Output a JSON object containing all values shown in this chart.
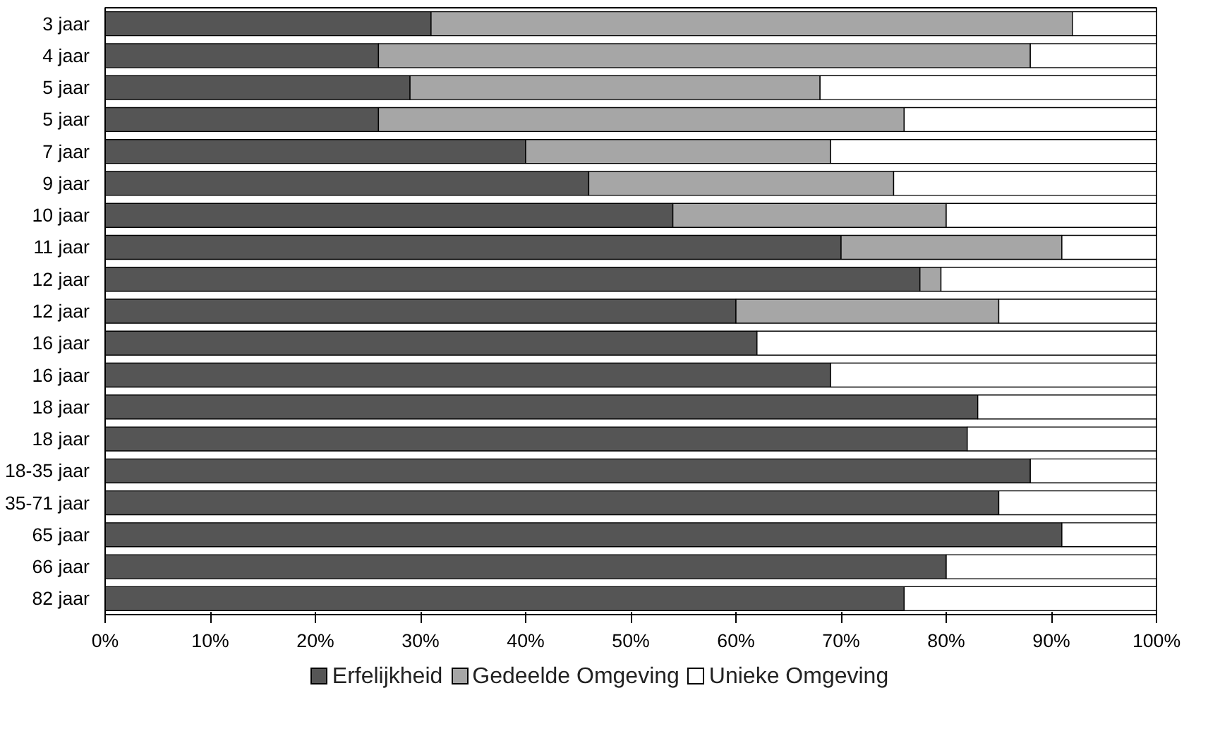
{
  "chart_data": {
    "type": "bar",
    "orientation": "horizontal",
    "stacked": true,
    "categories": [
      "3 jaar",
      "4 jaar",
      "5 jaar",
      "5 jaar",
      "7 jaar",
      "9 jaar",
      "10 jaar",
      "11 jaar",
      "12 jaar",
      "12 jaar",
      "16 jaar",
      "16 jaar",
      "18 jaar",
      "18 jaar",
      "18-35 jaar",
      "35-71 jaar",
      "65 jaar",
      "66 jaar",
      "82 jaar"
    ],
    "series": [
      {
        "name": "Erfelijkheid",
        "color": "#555555",
        "values": [
          31,
          26,
          29,
          26,
          40,
          46,
          54,
          70,
          77.5,
          60,
          62,
          69,
          83,
          82,
          88,
          85,
          91,
          80,
          76
        ]
      },
      {
        "name": "Gedeelde Omgeving",
        "color": "#a6a6a6",
        "values": [
          61,
          62,
          39,
          50,
          29,
          29,
          26,
          21,
          2,
          25,
          0,
          0,
          0,
          0,
          0,
          0,
          0,
          0,
          0
        ]
      },
      {
        "name": "Unieke Omgeving",
        "color": "#ffffff",
        "values": [
          8,
          12,
          32,
          24,
          31,
          25,
          20,
          9,
          20.5,
          15,
          38,
          31,
          17,
          18,
          12,
          15,
          9,
          20,
          24
        ]
      }
    ],
    "xlim": [
      0,
      100
    ],
    "xticks": [
      {
        "value": 0,
        "label": "0%"
      },
      {
        "value": 10,
        "label": "10%"
      },
      {
        "value": 20,
        "label": "20%"
      },
      {
        "value": 30,
        "label": "30%"
      },
      {
        "value": 40,
        "label": "40%"
      },
      {
        "value": 50,
        "label": "50%"
      },
      {
        "value": 60,
        "label": "60%"
      },
      {
        "value": 70,
        "label": "70%"
      },
      {
        "value": 80,
        "label": "80%"
      },
      {
        "value": 90,
        "label": "90%"
      },
      {
        "value": 100,
        "label": "100%"
      }
    ],
    "grid": false,
    "legend": "bottom"
  }
}
